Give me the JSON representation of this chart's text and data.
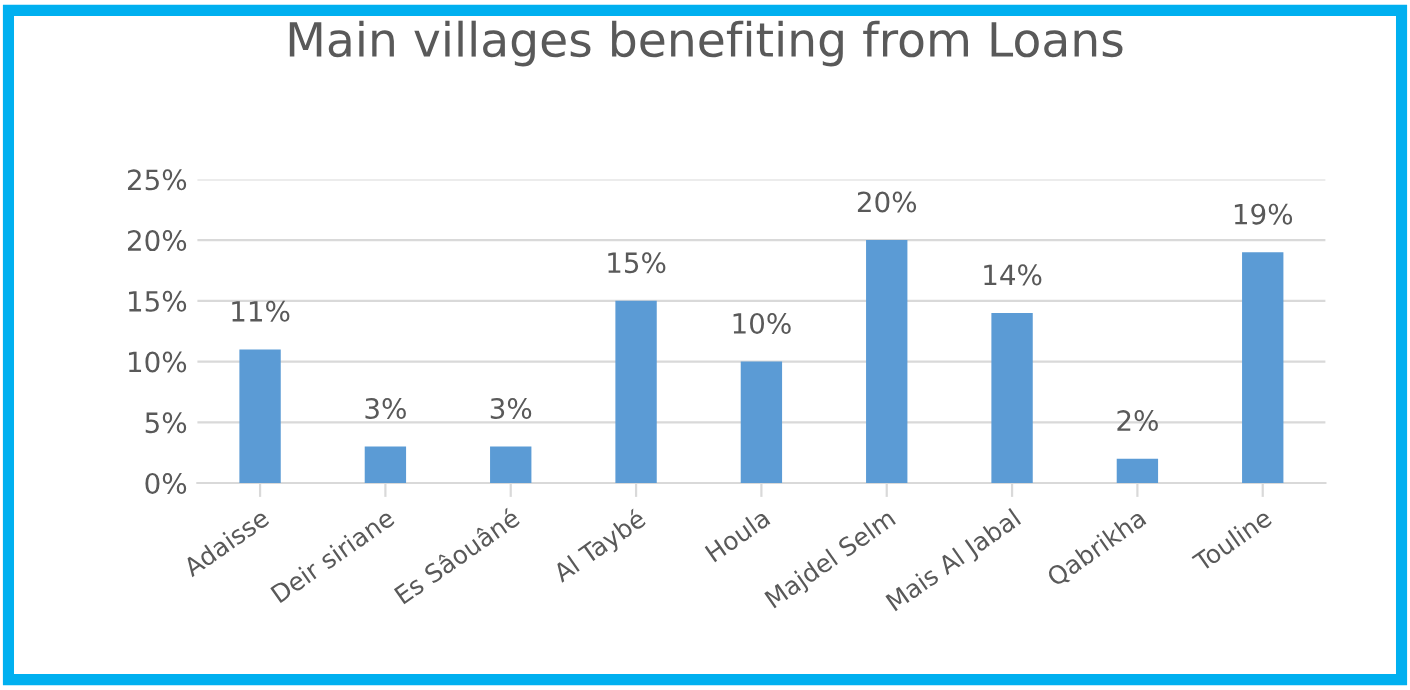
{
  "chart_data": {
    "type": "bar",
    "title": "Main villages benefiting from Loans",
    "categories": [
      "Adaisse",
      "Deir siriane",
      "Es Sâouâné",
      "Al Taybé",
      "Houla",
      "Majdel Selm",
      "Mais Al Jabal",
      "Qabrikha",
      "Touline"
    ],
    "values": [
      11,
      3,
      3,
      15,
      10,
      20,
      14,
      2,
      19
    ],
    "value_labels": [
      "11%",
      "3%",
      "3%",
      "15%",
      "10%",
      "20%",
      "14%",
      "2%",
      "19%"
    ],
    "color": "#5b9bd5",
    "ylim": [
      0,
      25
    ],
    "yticks": [
      {
        "value": 0,
        "label": "0%"
      },
      {
        "value": 5,
        "label": "5%"
      },
      {
        "value": 10,
        "label": "10%"
      },
      {
        "value": 15,
        "label": "15%"
      },
      {
        "value": 20,
        "label": "20%"
      },
      {
        "value": 25,
        "label": "25%"
      }
    ],
    "grid": "y"
  }
}
